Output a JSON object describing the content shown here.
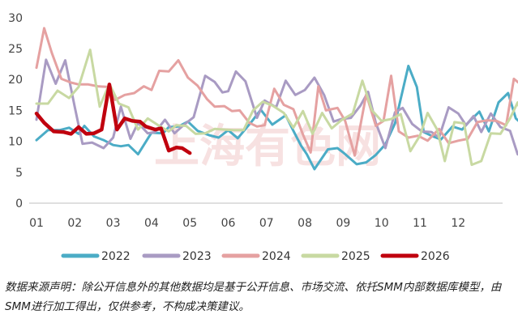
{
  "chart_data": {
    "type": "line",
    "title": "",
    "xlabel": "",
    "ylabel": "",
    "ylim": [
      0,
      30
    ],
    "yticks": [
      0,
      5,
      10,
      15,
      20,
      25,
      30
    ],
    "month_labels": [
      "01",
      "02",
      "03",
      "04",
      "05",
      "06",
      "07",
      "08",
      "09",
      "10",
      "11",
      "12"
    ],
    "grid": false,
    "legend_position": "bottom",
    "watermark_text": "上海有色网",
    "series": [
      {
        "name": "2022",
        "color": "#4BACC6",
        "width": 3,
        "points": [
          [
            0,
            10.2
          ],
          [
            0.3,
            11.8
          ],
          [
            0.6,
            11.8
          ],
          [
            0.85,
            12.2
          ],
          [
            1.1,
            11.2
          ],
          [
            1.25,
            12.5
          ],
          [
            1.5,
            10.8
          ],
          [
            1.75,
            10.2
          ],
          [
            2.0,
            9.4
          ],
          [
            2.2,
            9.2
          ],
          [
            2.4,
            9.4
          ],
          [
            2.65,
            7.9
          ],
          [
            3.0,
            11.4
          ],
          [
            3.3,
            11.3
          ],
          [
            3.45,
            12.3
          ],
          [
            3.7,
            12.4
          ],
          [
            3.95,
            13.2
          ],
          [
            4.2,
            11.7
          ],
          [
            4.5,
            11.0
          ],
          [
            4.75,
            10.6
          ],
          [
            5.0,
            11.8
          ],
          [
            5.25,
            10.5
          ],
          [
            5.6,
            13.1
          ],
          [
            5.85,
            15.1
          ],
          [
            6.15,
            12.7
          ],
          [
            6.5,
            14.2
          ],
          [
            6.7,
            11.7
          ],
          [
            6.9,
            9.3
          ],
          [
            7.05,
            7.9
          ],
          [
            7.25,
            5.5
          ],
          [
            7.6,
            8.7
          ],
          [
            7.85,
            8.9
          ],
          [
            8.0,
            8.2
          ],
          [
            8.35,
            6.3
          ],
          [
            8.6,
            6.6
          ],
          [
            8.85,
            7.8
          ],
          [
            9.1,
            9.5
          ],
          [
            9.35,
            12.9
          ],
          [
            9.7,
            22.2
          ],
          [
            9.92,
            18.8
          ],
          [
            10.1,
            11.5
          ],
          [
            10.3,
            10.9
          ],
          [
            10.55,
            10.3
          ],
          [
            10.85,
            12.4
          ],
          [
            11.1,
            11.9
          ],
          [
            11.3,
            13.3
          ],
          [
            11.55,
            14.8
          ],
          [
            11.8,
            11.6
          ],
          [
            12.05,
            16.3
          ],
          [
            12.3,
            17.8
          ],
          [
            12.5,
            13.7
          ],
          [
            12.75,
            12.3
          ],
          [
            12.9,
            10.6
          ]
        ]
      },
      {
        "name": "2023",
        "color": "#A99BC3",
        "width": 3,
        "points": [
          [
            0,
            13.5
          ],
          [
            0.25,
            23.2
          ],
          [
            0.5,
            19.3
          ],
          [
            0.75,
            23.1
          ],
          [
            1.0,
            15.5
          ],
          [
            1.2,
            9.6
          ],
          [
            1.45,
            9.8
          ],
          [
            1.75,
            8.9
          ],
          [
            2.0,
            10.6
          ],
          [
            2.2,
            15.6
          ],
          [
            2.45,
            10.4
          ],
          [
            2.65,
            13.0
          ],
          [
            2.9,
            11.3
          ],
          [
            3.1,
            11.5
          ],
          [
            3.35,
            13.5
          ],
          [
            3.6,
            11.3
          ],
          [
            3.85,
            12.7
          ],
          [
            4.1,
            13.9
          ],
          [
            4.4,
            20.6
          ],
          [
            4.65,
            19.6
          ],
          [
            4.85,
            17.9
          ],
          [
            5.0,
            18.1
          ],
          [
            5.2,
            21.3
          ],
          [
            5.45,
            19.7
          ],
          [
            5.75,
            13.8
          ],
          [
            5.95,
            16.6
          ],
          [
            6.25,
            15.5
          ],
          [
            6.5,
            19.8
          ],
          [
            6.75,
            17.5
          ],
          [
            7.0,
            18.3
          ],
          [
            7.25,
            20.3
          ],
          [
            7.5,
            17.5
          ],
          [
            7.75,
            13.2
          ],
          [
            7.95,
            13.6
          ],
          [
            8.2,
            13.8
          ],
          [
            8.45,
            15.8
          ],
          [
            8.65,
            18.0
          ],
          [
            8.85,
            13.0
          ],
          [
            9.1,
            8.9
          ],
          [
            9.35,
            14.7
          ],
          [
            9.55,
            15.4
          ],
          [
            9.8,
            12.8
          ],
          [
            10.05,
            11.6
          ],
          [
            10.3,
            11.5
          ],
          [
            10.5,
            10.6
          ],
          [
            10.75,
            15.5
          ],
          [
            11.0,
            14.5
          ],
          [
            11.2,
            12.6
          ],
          [
            11.4,
            14.1
          ],
          [
            11.6,
            11.5
          ],
          [
            11.85,
            14.5
          ],
          [
            12.1,
            12.3
          ],
          [
            12.35,
            11.7
          ],
          [
            12.55,
            7.9
          ],
          [
            12.75,
            7.4
          ],
          [
            12.95,
            10.4
          ]
        ]
      },
      {
        "name": "2024",
        "color": "#E5A1A1",
        "width": 3,
        "points": [
          [
            0,
            21.9
          ],
          [
            0.2,
            28.3
          ],
          [
            0.4,
            24.3
          ],
          [
            0.65,
            20.1
          ],
          [
            0.9,
            19.5
          ],
          [
            1.1,
            19.2
          ],
          [
            1.35,
            19.2
          ],
          [
            1.6,
            18.9
          ],
          [
            1.85,
            18.8
          ],
          [
            2.05,
            16.7
          ],
          [
            2.3,
            17.5
          ],
          [
            2.55,
            17.8
          ],
          [
            2.8,
            18.9
          ],
          [
            3.0,
            18.3
          ],
          [
            3.2,
            21.4
          ],
          [
            3.45,
            21.3
          ],
          [
            3.7,
            23.1
          ],
          [
            3.95,
            20.3
          ],
          [
            4.2,
            19.0
          ],
          [
            4.45,
            16.8
          ],
          [
            4.65,
            15.6
          ],
          [
            4.9,
            15.7
          ],
          [
            5.1,
            14.9
          ],
          [
            5.3,
            15.0
          ],
          [
            5.55,
            13.0
          ],
          [
            5.75,
            12.4
          ],
          [
            5.95,
            12.6
          ],
          [
            6.2,
            18.5
          ],
          [
            6.45,
            15.9
          ],
          [
            6.7,
            15.2
          ],
          [
            6.95,
            11.1
          ],
          [
            7.15,
            8.2
          ],
          [
            7.35,
            18.9
          ],
          [
            7.55,
            15.0
          ],
          [
            7.85,
            15.4
          ],
          [
            8.05,
            13.3
          ],
          [
            8.3,
            7.7
          ],
          [
            8.6,
            17.6
          ],
          [
            8.85,
            12.5
          ],
          [
            9.05,
            13.3
          ],
          [
            9.25,
            20.6
          ],
          [
            9.45,
            11.6
          ],
          [
            9.7,
            10.6
          ],
          [
            9.95,
            10.9
          ],
          [
            10.2,
            10.1
          ],
          [
            10.5,
            12.0
          ],
          [
            10.75,
            9.7
          ],
          [
            11.0,
            10.1
          ],
          [
            11.25,
            10.4
          ],
          [
            11.5,
            13.1
          ],
          [
            11.75,
            13.4
          ],
          [
            12.0,
            13.3
          ],
          [
            12.25,
            12.6
          ],
          [
            12.45,
            20.1
          ],
          [
            12.65,
            19.1
          ],
          [
            12.85,
            19.2
          ],
          [
            13.0,
            14.4
          ]
        ]
      },
      {
        "name": "2025",
        "color": "#C8D9A2",
        "width": 3,
        "points": [
          [
            0,
            16.1
          ],
          [
            0.3,
            16.1
          ],
          [
            0.55,
            18.2
          ],
          [
            0.85,
            17.0
          ],
          [
            1.1,
            18.8
          ],
          [
            1.4,
            24.8
          ],
          [
            1.65,
            15.6
          ],
          [
            1.9,
            19.3
          ],
          [
            2.15,
            16.1
          ],
          [
            2.4,
            15.5
          ],
          [
            2.65,
            11.9
          ],
          [
            2.9,
            13.7
          ],
          [
            3.2,
            12.5
          ],
          [
            3.45,
            11.6
          ],
          [
            3.65,
            12.6
          ],
          [
            3.9,
            12.5
          ],
          [
            4.15,
            11.2
          ],
          [
            4.4,
            11.3
          ],
          [
            4.65,
            12.0
          ],
          [
            4.9,
            11.9
          ],
          [
            5.15,
            11.8
          ],
          [
            5.4,
            11.8
          ],
          [
            5.65,
            15.0
          ],
          [
            5.9,
            16.4
          ],
          [
            6.15,
            15.8
          ],
          [
            6.45,
            14.6
          ],
          [
            6.7,
            12.2
          ],
          [
            6.95,
            14.9
          ],
          [
            7.2,
            11.2
          ],
          [
            7.45,
            14.6
          ],
          [
            7.7,
            12.1
          ],
          [
            7.95,
            13.4
          ],
          [
            8.25,
            14.5
          ],
          [
            8.5,
            19.8
          ],
          [
            8.75,
            15.0
          ],
          [
            9.0,
            13.3
          ],
          [
            9.25,
            13.6
          ],
          [
            9.5,
            14.4
          ],
          [
            9.75,
            8.4
          ],
          [
            10.0,
            10.9
          ],
          [
            10.2,
            14.6
          ],
          [
            10.45,
            11.9
          ],
          [
            10.65,
            6.8
          ],
          [
            10.9,
            13.1
          ],
          [
            11.15,
            12.9
          ],
          [
            11.35,
            6.2
          ],
          [
            11.6,
            6.8
          ],
          [
            11.85,
            11.3
          ],
          [
            12.1,
            11.2
          ],
          [
            12.35,
            13.7
          ],
          [
            12.55,
            16.3
          ],
          [
            12.75,
            12.5
          ],
          [
            12.9,
            11.0
          ]
        ]
      },
      {
        "name": "2026",
        "color": "#C0000E",
        "width": 4.5,
        "points": [
          [
            0,
            14.5
          ],
          [
            0.2,
            13.0
          ],
          [
            0.45,
            11.6
          ],
          [
            0.7,
            11.5
          ],
          [
            0.9,
            11.2
          ],
          [
            1.1,
            12.3
          ],
          [
            1.3,
            11.2
          ],
          [
            1.5,
            11.3
          ],
          [
            1.7,
            11.9
          ],
          [
            1.9,
            19.2
          ],
          [
            2.1,
            11.9
          ],
          [
            2.3,
            13.7
          ],
          [
            2.5,
            13.3
          ],
          [
            2.7,
            13.2
          ],
          [
            2.85,
            12.4
          ],
          [
            3.1,
            11.9
          ],
          [
            3.25,
            12.1
          ],
          [
            3.45,
            8.5
          ],
          [
            3.65,
            9.0
          ],
          [
            3.8,
            8.9
          ],
          [
            4.0,
            8.1
          ]
        ]
      }
    ]
  },
  "source_note": "数据来源声明：除公开信息外的其他数据均是基于公开信息、市场交流、依托SMM内部数据库模型，由SMM进行加工得出，仅供参考，不构成决策建议。"
}
